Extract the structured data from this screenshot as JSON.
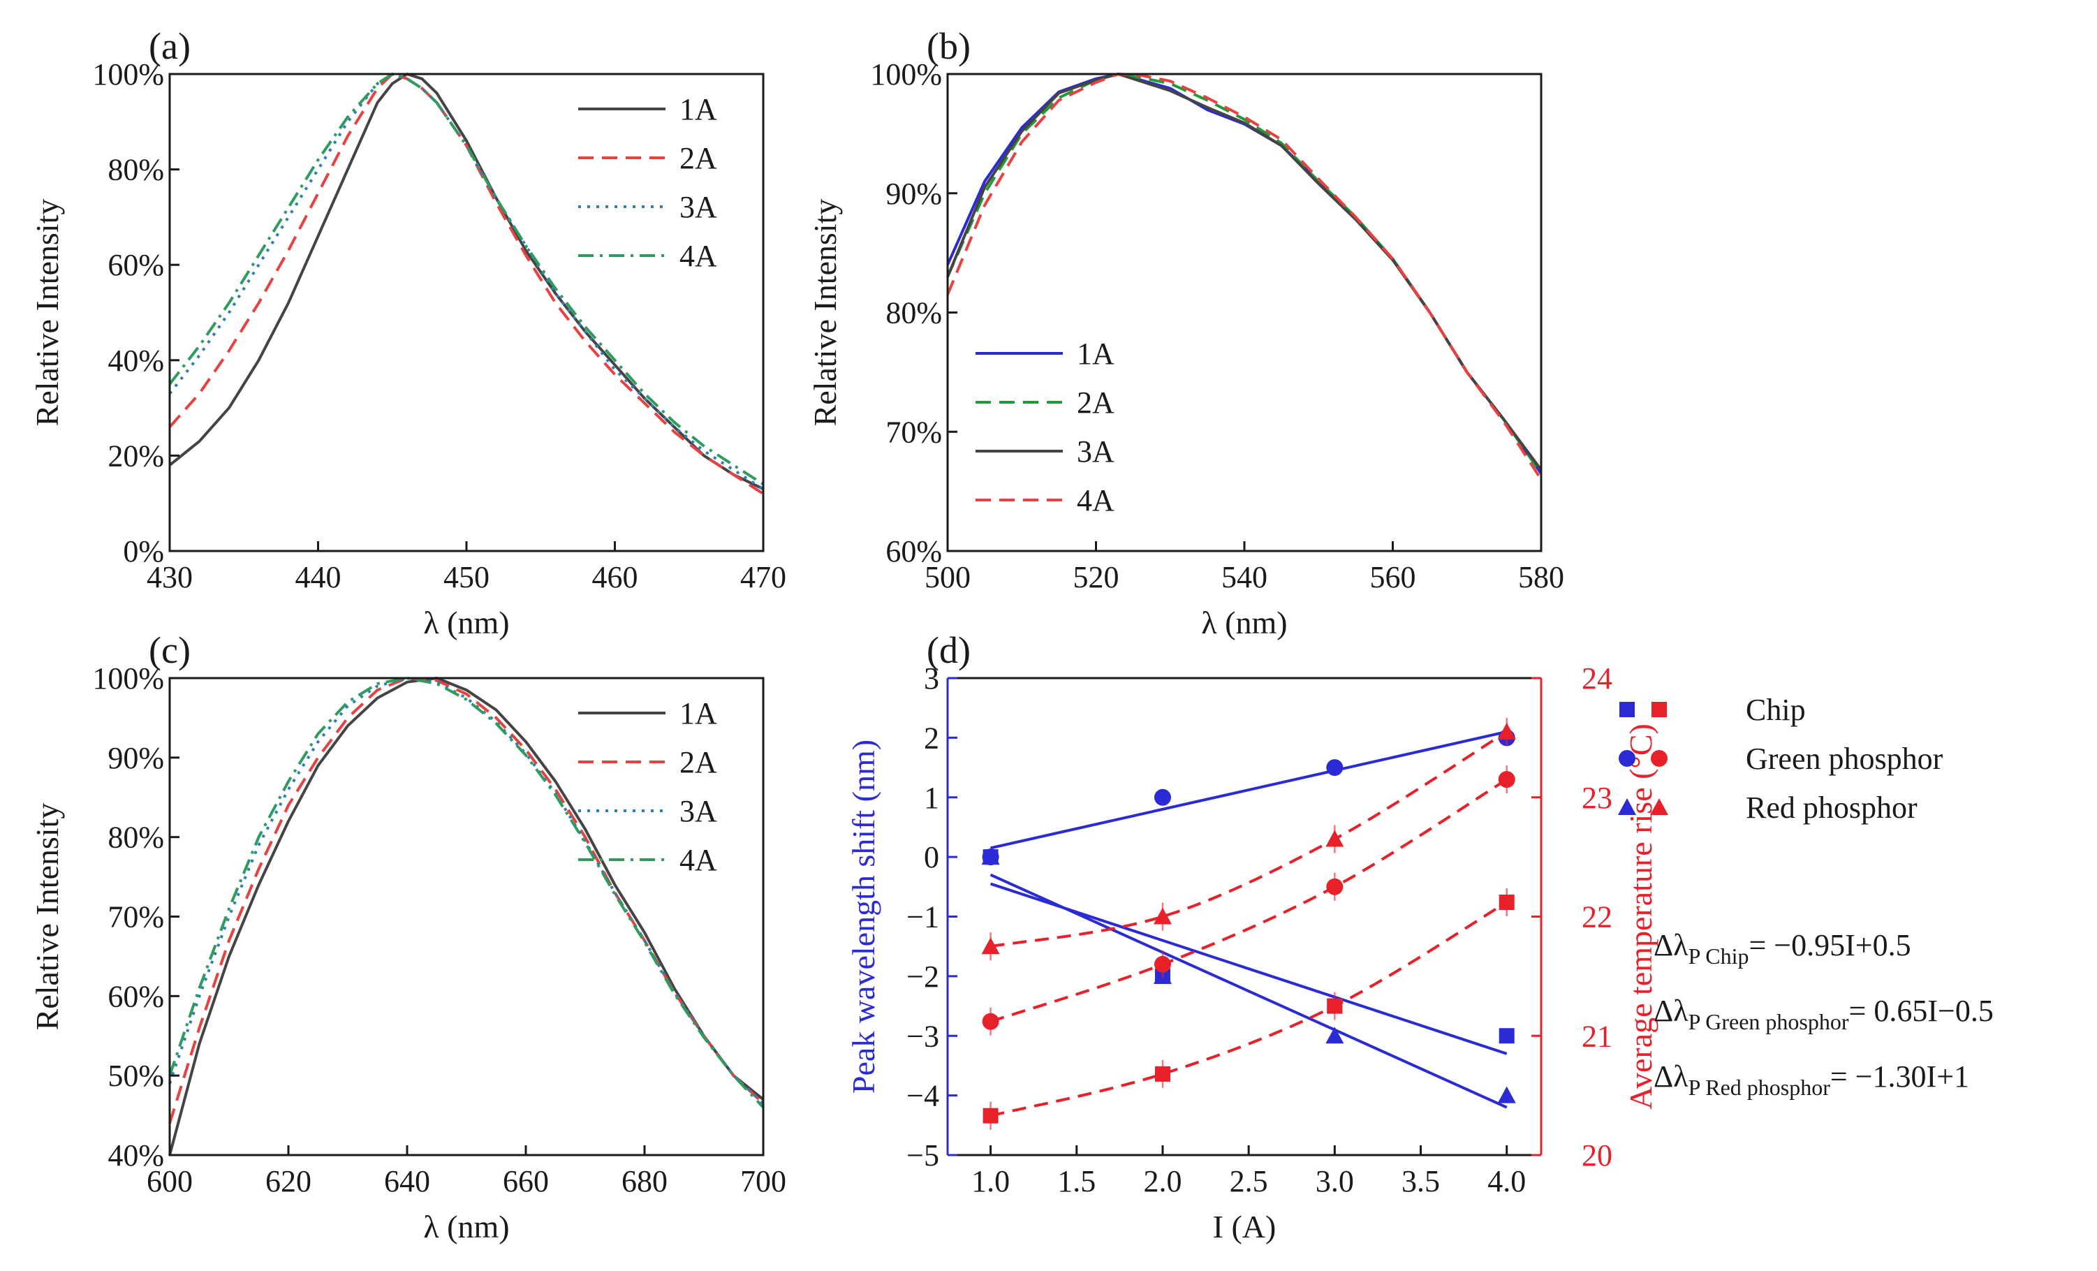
{
  "colors": {
    "black": "#444444",
    "red": "#e8413f",
    "blue": "#2b2bd6",
    "teal": "#2f7fb5",
    "green": "#2e9b5f",
    "green_solid": "#1f9b3a",
    "red_axis": "#e8202a"
  },
  "chart_data": [
    {
      "id": "a",
      "panel_label": "(a)",
      "type": "line",
      "xlabel": "λ (nm)",
      "ylabel": "Relative Intensity",
      "xlim": [
        430,
        470
      ],
      "ylim": [
        0,
        100
      ],
      "xticks": [
        430,
        440,
        450,
        460,
        470
      ],
      "yticks": [
        0,
        20,
        40,
        60,
        80,
        100
      ],
      "ytick_labels": [
        "0%",
        "20%",
        "40%",
        "60%",
        "80%",
        "100%"
      ],
      "legend_position": "top-right",
      "series": [
        {
          "name": "1A",
          "color": "black",
          "dash": "solid",
          "x": [
            430,
            432,
            434,
            436,
            438,
            440,
            442,
            444,
            445,
            446,
            447,
            448,
            450,
            452,
            454,
            456,
            458,
            460,
            462,
            464,
            466,
            468,
            470
          ],
          "y": [
            18,
            23,
            30,
            40,
            52,
            66,
            80,
            94,
            98,
            100,
            99,
            96,
            86,
            74,
            63,
            54,
            46,
            39,
            32,
            26,
            20,
            16,
            13
          ]
        },
        {
          "name": "2A",
          "color": "red",
          "dash": "dash",
          "x": [
            430,
            432,
            434,
            436,
            438,
            440,
            442,
            444,
            445,
            446,
            447,
            448,
            450,
            452,
            454,
            456,
            458,
            460,
            462,
            464,
            466,
            468,
            470
          ],
          "y": [
            26,
            33,
            42,
            52,
            63,
            75,
            87,
            97,
            100,
            99,
            97,
            94,
            85,
            73,
            62,
            52,
            44,
            37,
            31,
            25,
            20,
            16,
            12
          ]
        },
        {
          "name": "3A",
          "color": "teal",
          "dash": "dot",
          "x": [
            430,
            432,
            434,
            436,
            438,
            440,
            442,
            444,
            445,
            446,
            447,
            448,
            450,
            452,
            454,
            456,
            458,
            460,
            462,
            464,
            466,
            468,
            470
          ],
          "y": [
            33,
            41,
            50,
            60,
            70,
            80,
            90,
            98,
            100,
            99,
            97,
            94,
            85,
            74,
            64,
            54,
            46,
            38,
            32,
            26,
            21,
            17,
            13
          ]
        },
        {
          "name": "4A",
          "color": "green",
          "dash": "dashdot",
          "x": [
            430,
            432,
            434,
            436,
            438,
            440,
            442,
            444,
            445,
            446,
            447,
            448,
            450,
            452,
            454,
            456,
            458,
            460,
            462,
            464,
            466,
            468,
            470
          ],
          "y": [
            35,
            43,
            52,
            62,
            72,
            82,
            91,
            98,
            100,
            99,
            97,
            94,
            85,
            74,
            64,
            55,
            47,
            40,
            33,
            27,
            22,
            18,
            14
          ]
        }
      ]
    },
    {
      "id": "b",
      "panel_label": "(b)",
      "type": "line",
      "xlabel": "λ (nm)",
      "ylabel": "Relative Intensity",
      "xlim": [
        500,
        580
      ],
      "ylim": [
        60,
        100
      ],
      "xticks": [
        500,
        520,
        540,
        560,
        580
      ],
      "yticks": [
        60,
        70,
        80,
        90,
        100
      ],
      "ytick_labels": [
        "60%",
        "70%",
        "80%",
        "90%",
        "100%"
      ],
      "legend_position": "bottom-left",
      "series": [
        {
          "name": "1A",
          "color": "blue",
          "dash": "solid",
          "x": [
            500,
            505,
            510,
            515,
            520,
            523,
            526,
            530,
            535,
            540,
            545,
            550,
            555,
            560,
            565,
            570,
            575,
            580
          ],
          "y": [
            84,
            91,
            95.5,
            98.5,
            99.6,
            100,
            99.5,
            98.8,
            97,
            95.8,
            94,
            91,
            88,
            84.5,
            80,
            75,
            71,
            66.5
          ]
        },
        {
          "name": "2A",
          "color": "green_solid",
          "dash": "dash",
          "x": [
            500,
            505,
            510,
            515,
            520,
            523,
            526,
            530,
            535,
            540,
            545,
            550,
            555,
            560,
            565,
            570,
            575,
            580
          ],
          "y": [
            83,
            90,
            95,
            98,
            99.5,
            100,
            99.7,
            99.2,
            97.8,
            96.2,
            94.2,
            91,
            88,
            84.5,
            80,
            75,
            71,
            66.5
          ]
        },
        {
          "name": "3A",
          "color": "black",
          "dash": "solid",
          "x": [
            500,
            505,
            510,
            515,
            520,
            523,
            526,
            530,
            535,
            540,
            545,
            550,
            555,
            560,
            565,
            570,
            575,
            580
          ],
          "y": [
            83,
            90.5,
            95.2,
            98.4,
            99.5,
            100,
            99.4,
            98.6,
            97.2,
            95.9,
            94,
            90.8,
            87.8,
            84.4,
            80,
            75,
            71,
            66.8
          ]
        },
        {
          "name": "4A",
          "color": "red",
          "dash": "dash",
          "x": [
            500,
            505,
            510,
            515,
            520,
            523,
            526,
            530,
            535,
            540,
            545,
            550,
            555,
            560,
            565,
            570,
            575,
            580
          ],
          "y": [
            81.5,
            89,
            94.3,
            97.8,
            99.3,
            100,
            99.9,
            99.4,
            98,
            96.4,
            94.5,
            91.2,
            88,
            84.5,
            80,
            75,
            70.8,
            66
          ]
        }
      ]
    },
    {
      "id": "c",
      "panel_label": "(c)",
      "type": "line",
      "xlabel": "λ (nm)",
      "ylabel": "Relative Intensity",
      "xlim": [
        600,
        700
      ],
      "ylim": [
        40,
        100
      ],
      "xticks": [
        600,
        620,
        640,
        660,
        680,
        700
      ],
      "yticks": [
        40,
        50,
        60,
        70,
        80,
        90,
        100
      ],
      "ytick_labels": [
        "40%",
        "50%",
        "60%",
        "70%",
        "80%",
        "90%",
        "100%"
      ],
      "legend_position": "top-right",
      "series": [
        {
          "name": "1A",
          "color": "black",
          "dash": "solid",
          "x": [
            600,
            605,
            610,
            615,
            620,
            625,
            630,
            635,
            640,
            645,
            650,
            655,
            660,
            665,
            670,
            675,
            680,
            685,
            690,
            695,
            700
          ],
          "y": [
            40,
            54,
            65,
            74,
            82,
            89,
            94,
            97.5,
            99.5,
            100,
            98.5,
            96,
            92,
            87,
            81,
            74,
            68,
            61,
            55,
            50,
            47
          ]
        },
        {
          "name": "2A",
          "color": "red",
          "dash": "dash",
          "x": [
            600,
            605,
            610,
            615,
            620,
            625,
            630,
            635,
            640,
            645,
            650,
            655,
            660,
            665,
            670,
            675,
            680,
            685,
            690,
            695,
            700
          ],
          "y": [
            44,
            56,
            67,
            76,
            84,
            90,
            95,
            98.5,
            100,
            99.7,
            98,
            95,
            91,
            86,
            80,
            73,
            67,
            60.5,
            55,
            50,
            46.5
          ]
        },
        {
          "name": "3A",
          "color": "teal",
          "dash": "dot",
          "x": [
            600,
            605,
            610,
            615,
            620,
            625,
            630,
            635,
            640,
            645,
            650,
            655,
            660,
            665,
            670,
            675,
            680,
            685,
            690,
            695,
            700
          ],
          "y": [
            49,
            60,
            70,
            79,
            86,
            92,
            96.5,
            99,
            100,
            99.5,
            97.5,
            94.5,
            90.5,
            85.5,
            79.5,
            73,
            67,
            60.5,
            55,
            50,
            46.5
          ]
        },
        {
          "name": "4A",
          "color": "green",
          "dash": "dashdot",
          "x": [
            600,
            605,
            610,
            615,
            620,
            625,
            630,
            635,
            640,
            645,
            650,
            655,
            660,
            665,
            670,
            675,
            680,
            685,
            690,
            695,
            700
          ],
          "y": [
            50,
            61,
            71,
            80,
            87,
            93,
            97,
            99.3,
            100,
            99.3,
            97.3,
            94.3,
            90.3,
            85.3,
            79.3,
            72.8,
            66.8,
            60.3,
            54.8,
            50,
            46
          ]
        }
      ]
    },
    {
      "id": "d",
      "panel_label": "(d)",
      "type": "scatter",
      "xlabel": "I (A)",
      "ylabel_left": "Peak wavelength shift (nm)",
      "ylabel_right": "Average temperature rise (°C)",
      "xlim": [
        0.75,
        4.2
      ],
      "ylim_left": [
        -5,
        3
      ],
      "ylim_right": [
        20,
        24
      ],
      "xticks": [
        1.0,
        1.5,
        2.0,
        2.5,
        3.0,
        3.5,
        4.0
      ],
      "xtick_labels": [
        "1.0",
        "1.5",
        "2.0",
        "2.5",
        "3.0",
        "3.5",
        "4.0"
      ],
      "yticks_left": [
        -5,
        -4,
        -3,
        -2,
        -1,
        0,
        1,
        2,
        3
      ],
      "yticks_right": [
        20,
        21,
        22,
        23,
        24
      ],
      "legend_position": "outside-right",
      "legend": [
        {
          "name": "Chip",
          "marker": "square"
        },
        {
          "name": "Green phosphor",
          "marker": "circle"
        },
        {
          "name": "Red phosphor",
          "marker": "triangle"
        }
      ],
      "shift_series": [
        {
          "name": "Chip",
          "marker": "square",
          "x": [
            1,
            2,
            3,
            4
          ],
          "y": [
            0,
            -2,
            -2.5,
            -3
          ],
          "fit": [
            [
              1,
              -0.45
            ],
            [
              4,
              -3.3
            ]
          ]
        },
        {
          "name": "Green phosphor",
          "marker": "circle",
          "x": [
            1,
            2,
            3,
            4
          ],
          "y": [
            0,
            1,
            1.5,
            2
          ],
          "fit": [
            [
              1,
              0.15
            ],
            [
              4,
              2.1
            ]
          ]
        },
        {
          "name": "Red phosphor",
          "marker": "triangle",
          "x": [
            1,
            2,
            3,
            4
          ],
          "y": [
            0,
            -2,
            -3,
            -4
          ],
          "fit": [
            [
              1,
              -0.3
            ],
            [
              4,
              -4.2
            ]
          ]
        }
      ],
      "temperature_series": [
        {
          "name": "Chip",
          "marker": "square",
          "x": [
            1,
            2,
            3,
            4
          ],
          "y": [
            20.33,
            20.68,
            21.25,
            22.12
          ]
        },
        {
          "name": "Green phosphor",
          "marker": "circle",
          "x": [
            1,
            2,
            3,
            4
          ],
          "y": [
            21.12,
            21.6,
            22.25,
            23.15
          ]
        },
        {
          "name": "Red phosphor",
          "marker": "triangle",
          "x": [
            1,
            2,
            3,
            4
          ],
          "y": [
            21.75,
            22.0,
            22.65,
            23.55
          ]
        }
      ],
      "equations": [
        {
          "lhs": "Δλ",
          "sub": "P Chip",
          "rhs": "= −0.95I+0.5"
        },
        {
          "lhs": "Δλ",
          "sub": "P Green phosphor",
          "rhs": "= 0.65I−0.5"
        },
        {
          "lhs": "Δλ",
          "sub": "P Red phosphor",
          "rhs": "= −1.30I+1"
        }
      ]
    }
  ]
}
